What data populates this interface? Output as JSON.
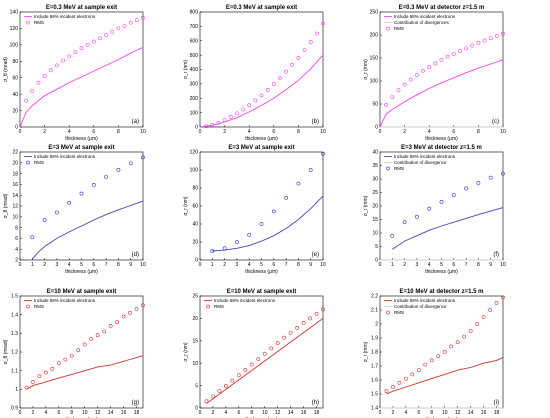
{
  "chart_data": [
    {
      "type": "scatter",
      "title": "E=0.3 MeV at sample exit",
      "xlabel": "thickness",
      "ylabel": "σ_θ (mrad)",
      "xlim": [
        0,
        10
      ],
      "ylim": [
        0,
        140
      ],
      "xticks": [
        "0",
        "2",
        "4",
        "6",
        "8",
        "10"
      ],
      "yticks": [
        "0",
        "20",
        "40",
        "60",
        "80",
        "100",
        "120",
        "140"
      ],
      "panel_label": "(a)",
      "legend_position": "top-left",
      "series": [
        {
          "name": "Include 68% incident electrons",
          "style": "line",
          "color": "#ee44ee",
          "x": [
            0,
            0.5,
            1,
            2,
            3,
            4,
            5,
            6,
            7,
            8,
            9,
            10
          ],
          "y": [
            0,
            18,
            26,
            38,
            46,
            54,
            61,
            68,
            75,
            82,
            90,
            97
          ]
        },
        {
          "name": "RMS",
          "style": "marker",
          "color": "#ee44ee",
          "x": [
            0.5,
            1,
            1.5,
            2,
            2.5,
            3,
            3.5,
            4,
            4.5,
            5,
            5.5,
            6,
            6.5,
            7,
            7.5,
            8,
            8.5,
            9,
            9.5,
            10
          ],
          "y": [
            32,
            44,
            54,
            62,
            69,
            75,
            81,
            86,
            91,
            96,
            100,
            104,
            108,
            112,
            116,
            120,
            123,
            127,
            130,
            133
          ]
        }
      ]
    },
    {
      "type": "scatter",
      "title": "E=0.3 MeV at sample exit",
      "xlabel": "thickness",
      "ylabel": "σ_r (nm)",
      "xlim": [
        0,
        10
      ],
      "ylim": [
        0,
        800
      ],
      "xticks": [
        "0",
        "2",
        "4",
        "6",
        "8",
        "10"
      ],
      "yticks": [
        "0",
        "100",
        "200",
        "300",
        "400",
        "500",
        "600",
        "700",
        "800"
      ],
      "panel_label": "(b)",
      "series": [
        {
          "name": "",
          "style": "line",
          "color": "#ee44ee",
          "x": [
            0,
            1,
            2,
            3,
            4,
            5,
            6,
            7,
            8,
            9,
            10
          ],
          "y": [
            0,
            12,
            35,
            65,
            105,
            150,
            200,
            260,
            325,
            405,
            500
          ]
        },
        {
          "name": "",
          "style": "marker",
          "color": "#ee44ee",
          "x": [
            0.5,
            1,
            1.5,
            2,
            2.5,
            3,
            3.5,
            4,
            4.5,
            5,
            5.5,
            6,
            6.5,
            7,
            7.5,
            8,
            8.5,
            9,
            9.5,
            10
          ],
          "y": [
            5,
            15,
            30,
            48,
            70,
            95,
            122,
            152,
            185,
            220,
            258,
            298,
            340,
            385,
            432,
            480,
            535,
            590,
            650,
            720
          ]
        }
      ]
    },
    {
      "type": "scatter",
      "title": "E=0.3 MeV at detector z=1.5 m",
      "xlabel": "thickness",
      "ylabel": "σ_r (mm)",
      "xlim": [
        0,
        10
      ],
      "ylim": [
        0,
        250
      ],
      "xticks": [
        "0",
        "2",
        "4",
        "6",
        "8",
        "10"
      ],
      "yticks": [
        "0",
        "50",
        "100",
        "150",
        "200",
        "250"
      ],
      "panel_label": "(c)",
      "legend_position": "top-left",
      "series": [
        {
          "name": "Include 68% incident electrons",
          "style": "line",
          "color": "#ee44ee",
          "x": [
            0,
            0.5,
            1,
            2,
            3,
            4,
            5,
            6,
            7,
            8,
            9,
            10
          ],
          "y": [
            0,
            28,
            38,
            55,
            70,
            84,
            96,
            107,
            118,
            128,
            137,
            146
          ]
        },
        {
          "name": "Contribution of divergences",
          "style": "line",
          "color": "#cccccc",
          "x": [
            0,
            10
          ],
          "y": [
            0,
            0
          ]
        },
        {
          "name": "RMS",
          "style": "marker",
          "color": "#ee44ee",
          "x": [
            0.5,
            1,
            1.5,
            2,
            2.5,
            3,
            3.5,
            4,
            4.5,
            5,
            5.5,
            6,
            6.5,
            7,
            7.5,
            8,
            8.5,
            9,
            9.5,
            10
          ],
          "y": [
            48,
            65,
            80,
            92,
            103,
            113,
            122,
            130,
            138,
            146,
            153,
            159,
            165,
            171,
            177,
            183,
            188,
            193,
            198,
            203
          ]
        }
      ]
    },
    {
      "type": "scatter",
      "title": "E=3 MeV at sample exit",
      "xlabel": "thickness",
      "ylabel": "σ_θ (mrad)",
      "xlim": [
        0,
        10
      ],
      "ylim": [
        2,
        22
      ],
      "xticks": [
        "0",
        "1",
        "2",
        "3",
        "4",
        "5",
        "6",
        "7",
        "8",
        "9",
        "10"
      ],
      "yticks": [
        "2",
        "4",
        "6",
        "8",
        "10",
        "12",
        "14",
        "16",
        "18",
        "20",
        "22"
      ],
      "panel_label": "(d)",
      "legend_position": "top-left",
      "series": [
        {
          "name": "Include 68% incident electrons",
          "style": "line",
          "color": "#4444bb",
          "x": [
            1,
            1.5,
            2,
            3,
            4,
            5,
            6,
            7,
            8,
            9,
            10
          ],
          "y": [
            2.2,
            3.5,
            4.5,
            6,
            7.2,
            8.3,
            9.4,
            10.4,
            11.3,
            12.1,
            12.9
          ]
        },
        {
          "name": "RMS",
          "style": "marker",
          "color": "#3333cc",
          "x": [
            1,
            2,
            3,
            4,
            5,
            6,
            7,
            8,
            9,
            10
          ],
          "y": [
            6.2,
            9.4,
            10.8,
            12.6,
            14.3,
            15.9,
            17.4,
            18.7,
            19.9,
            21
          ]
        }
      ]
    },
    {
      "type": "scatter",
      "title": "E=3 MeV at sample exit",
      "xlabel": "thickness",
      "ylabel": "σ_r (nm)",
      "xlim": [
        0,
        10
      ],
      "ylim": [
        0,
        120
      ],
      "xticks": [
        "0",
        "1",
        "2",
        "3",
        "4",
        "5",
        "6",
        "7",
        "8",
        "9",
        "10"
      ],
      "yticks": [
        "0",
        "20",
        "40",
        "60",
        "80",
        "100",
        "120"
      ],
      "panel_label": "(e)",
      "series": [
        {
          "name": "",
          "style": "line",
          "color": "#4444bb",
          "x": [
            1,
            2,
            3,
            4,
            5,
            6,
            7,
            8,
            9,
            10
          ],
          "y": [
            10,
            11,
            13,
            16,
            21,
            27,
            35,
            45,
            57,
            71
          ]
        },
        {
          "name": "",
          "style": "marker",
          "color": "#3333cc",
          "x": [
            1,
            2,
            3,
            4,
            5,
            6,
            7,
            8,
            9,
            10
          ],
          "y": [
            10,
            13,
            20,
            28,
            40,
            54,
            69,
            85,
            100,
            118
          ]
        }
      ]
    },
    {
      "type": "scatter",
      "title": "E=3 MeV at detector z=1.5 m",
      "xlabel": "thickness",
      "ylabel": "σ_r (mm)",
      "xlim": [
        0,
        10
      ],
      "ylim": [
        0,
        40
      ],
      "xticks": [
        "0",
        "1",
        "2",
        "3",
        "4",
        "5",
        "6",
        "7",
        "8",
        "9",
        "10"
      ],
      "yticks": [
        "0",
        "5",
        "10",
        "15",
        "20",
        "25",
        "30",
        "35",
        "40"
      ],
      "panel_label": "(f)",
      "legend_position": "top-left",
      "series": [
        {
          "name": "Include 68% incident electrons",
          "style": "line",
          "color": "#4444bb",
          "x": [
            1,
            2,
            3,
            4,
            5,
            6,
            7,
            8,
            9,
            10
          ],
          "y": [
            4,
            7,
            9,
            11,
            12.6,
            14,
            15.4,
            16.8,
            18.1,
            19.4
          ]
        },
        {
          "name": "Contribution of divergence",
          "style": "line",
          "color": "#cccccc",
          "x": [
            0,
            10
          ],
          "y": [
            0,
            0
          ]
        },
        {
          "name": "RMS",
          "style": "marker",
          "color": "#3333cc",
          "x": [
            1,
            2,
            3,
            4,
            5,
            6,
            7,
            8,
            9,
            10
          ],
          "y": [
            9,
            14,
            16,
            19,
            21.5,
            24,
            26.5,
            28.5,
            30.5,
            32
          ]
        }
      ]
    },
    {
      "type": "scatter",
      "title": "E=10 MeV at sample exit",
      "xlabel": "thickness",
      "ylabel": "σ_θ (mrad)",
      "xlim": [
        0,
        19
      ],
      "ylim": [
        0.9,
        1.5
      ],
      "xticks": [
        "0",
        "2",
        "4",
        "6",
        "8",
        "10",
        "12",
        "14",
        "16",
        "18"
      ],
      "yticks": [
        "0.9",
        "1",
        "1.1",
        "1.2",
        "1.3",
        "1.4",
        "1.5"
      ],
      "panel_label": "(g)",
      "legend_position": "top-left",
      "series": [
        {
          "name": "Include 68% incident electrons",
          "style": "line",
          "color": "#cc3333",
          "x": [
            1,
            2,
            4,
            6,
            8,
            10,
            12,
            14,
            16,
            18,
            19
          ],
          "y": [
            1.0,
            1.02,
            1.04,
            1.06,
            1.08,
            1.1,
            1.12,
            1.13,
            1.15,
            1.17,
            1.18
          ]
        },
        {
          "name": "RMS",
          "style": "marker",
          "color": "#cc3333",
          "x": [
            1,
            2,
            3,
            4,
            5,
            6,
            7,
            8,
            9,
            10,
            11,
            12,
            13,
            14,
            15,
            16,
            17,
            18,
            19
          ],
          "y": [
            1.01,
            1.04,
            1.07,
            1.09,
            1.11,
            1.14,
            1.16,
            1.18,
            1.21,
            1.24,
            1.27,
            1.29,
            1.31,
            1.34,
            1.36,
            1.39,
            1.41,
            1.43,
            1.45
          ]
        }
      ]
    },
    {
      "type": "scatter",
      "title": "E=10 MeV at sample exit",
      "xlabel": "thickness",
      "ylabel": "σ_r (nm)",
      "xlim": [
        0,
        19
      ],
      "ylim": [
        0,
        25
      ],
      "xticks": [
        "0",
        "2",
        "4",
        "6",
        "8",
        "10",
        "12",
        "14",
        "16",
        "18"
      ],
      "yticks": [
        "0",
        "5",
        "10",
        "15",
        "20",
        "25"
      ],
      "panel_label": "(h)",
      "legend_position": "top-left",
      "series": [
        {
          "name": "Include 68% incident electrons",
          "style": "line",
          "color": "#cc3333",
          "x": [
            1,
            19
          ],
          "y": [
            1,
            20
          ]
        },
        {
          "name": "RMS",
          "style": "marker",
          "color": "#cc3333",
          "x": [
            1,
            2,
            3,
            4,
            5,
            6,
            7,
            8,
            9,
            10,
            11,
            12,
            13,
            14,
            15,
            16,
            17,
            18,
            19
          ],
          "y": [
            1.5,
            2.6,
            3.8,
            4.9,
            6.1,
            7.3,
            8.5,
            9.7,
            10.9,
            12.1,
            13.3,
            14.5,
            15.7,
            16.8,
            17.9,
            19,
            20,
            21,
            22
          ]
        }
      ]
    },
    {
      "type": "scatter",
      "title": "E=10 MeV at detector z=1.5 m",
      "xlabel": "thickness",
      "ylabel": "σ_r (mm)",
      "xlim": [
        0,
        19
      ],
      "ylim": [
        1.4,
        2.2
      ],
      "xticks": [
        "0",
        "2",
        "4",
        "6",
        "8",
        "10",
        "12",
        "14",
        "16",
        "18"
      ],
      "yticks": [
        "1.4",
        "1.5",
        "1.6",
        "1.7",
        "1.8",
        "1.9",
        "2",
        "2.1",
        "2.2"
      ],
      "panel_label": "(i)",
      "legend_position": "top-left",
      "series": [
        {
          "name": "Include 68% incident electrons",
          "style": "line",
          "color": "#cc3333",
          "x": [
            1,
            2,
            4,
            6,
            8,
            10,
            12,
            14,
            16,
            18,
            19
          ],
          "y": [
            1.5,
            1.52,
            1.55,
            1.58,
            1.61,
            1.64,
            1.67,
            1.69,
            1.72,
            1.74,
            1.76
          ]
        },
        {
          "name": "Contribution of divergence",
          "style": "line",
          "color": "#cccccc",
          "x": [
            0,
            19
          ],
          "y": [
            1.4,
            1.4
          ]
        },
        {
          "name": "RMS",
          "style": "marker",
          "color": "#cc3333",
          "x": [
            1,
            2,
            3,
            4,
            5,
            6,
            7,
            8,
            9,
            10,
            11,
            12,
            13,
            14,
            15,
            16,
            17,
            18,
            19
          ],
          "y": [
            1.52,
            1.55,
            1.58,
            1.61,
            1.64,
            1.67,
            1.71,
            1.74,
            1.77,
            1.8,
            1.84,
            1.87,
            1.91,
            1.95,
            2.0,
            2.05,
            2.1,
            2.15,
            2.19
          ]
        }
      ]
    }
  ]
}
